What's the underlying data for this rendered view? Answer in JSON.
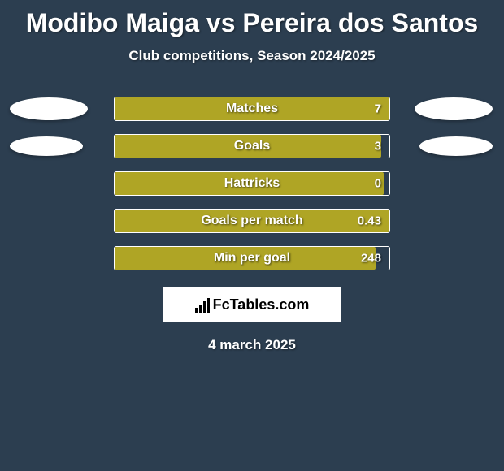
{
  "background_color": "#2c3e50",
  "title": "Modibo Maiga vs Pereira dos Santos",
  "title_fontsize": 32,
  "title_color": "#ffffff",
  "subtitle": "Club competitions, Season 2024/2025",
  "subtitle_fontsize": 17,
  "subtitle_color": "#ffffff",
  "date": "4 march 2025",
  "branding": {
    "text": "FcTables.com"
  },
  "chart": {
    "type": "bar",
    "bar_track_width": 340,
    "bar_track_height": 30,
    "bar_border_color": "#ffffff",
    "fill_color": "#afa525",
    "label_color": "#ffffff",
    "value_color": "#ffffff",
    "rows": [
      {
        "label": "Matches",
        "value": "7",
        "fill_pct": 100,
        "show_placeholders": true,
        "placeholder_small": false
      },
      {
        "label": "Goals",
        "value": "3",
        "fill_pct": 97,
        "show_placeholders": true,
        "placeholder_small": true
      },
      {
        "label": "Hattricks",
        "value": "0",
        "fill_pct": 98,
        "show_placeholders": false
      },
      {
        "label": "Goals per match",
        "value": "0.43",
        "fill_pct": 100,
        "show_placeholders": false
      },
      {
        "label": "Min per goal",
        "value": "248",
        "fill_pct": 95,
        "show_placeholders": false
      }
    ]
  }
}
